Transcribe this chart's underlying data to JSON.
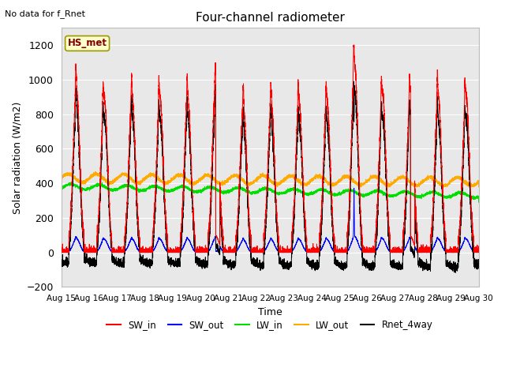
{
  "title": "Four-channel radiometer",
  "top_left_note": "No data for f_Rnet",
  "station_label": "HS_met",
  "ylabel": "Solar radiation (W/m2)",
  "xlabel": "Time",
  "ylim": [
    -200,
    1300
  ],
  "yticks": [
    -200,
    0,
    200,
    400,
    600,
    800,
    1000,
    1200
  ],
  "xtick_labels": [
    "Aug 15",
    "Aug 16",
    "Aug 17",
    "Aug 18",
    "Aug 19",
    "Aug 20",
    "Aug 21",
    "Aug 22",
    "Aug 23",
    "Aug 24",
    "Aug 25",
    "Aug 26",
    "Aug 27",
    "Aug 28",
    "Aug 29",
    "Aug 30"
  ],
  "fig_bg_color": "#ffffff",
  "plot_bg_color": "#e8e8e8",
  "grid_color": "#ffffff",
  "colors": {
    "SW_in": "#ff0000",
    "SW_out": "#0000ff",
    "LW_in": "#00dd00",
    "LW_out": "#ffaa00",
    "Rnet_4way": "#000000"
  },
  "legend_entries": [
    "SW_in",
    "SW_out",
    "LW_in",
    "LW_out",
    "Rnet_4way"
  ]
}
